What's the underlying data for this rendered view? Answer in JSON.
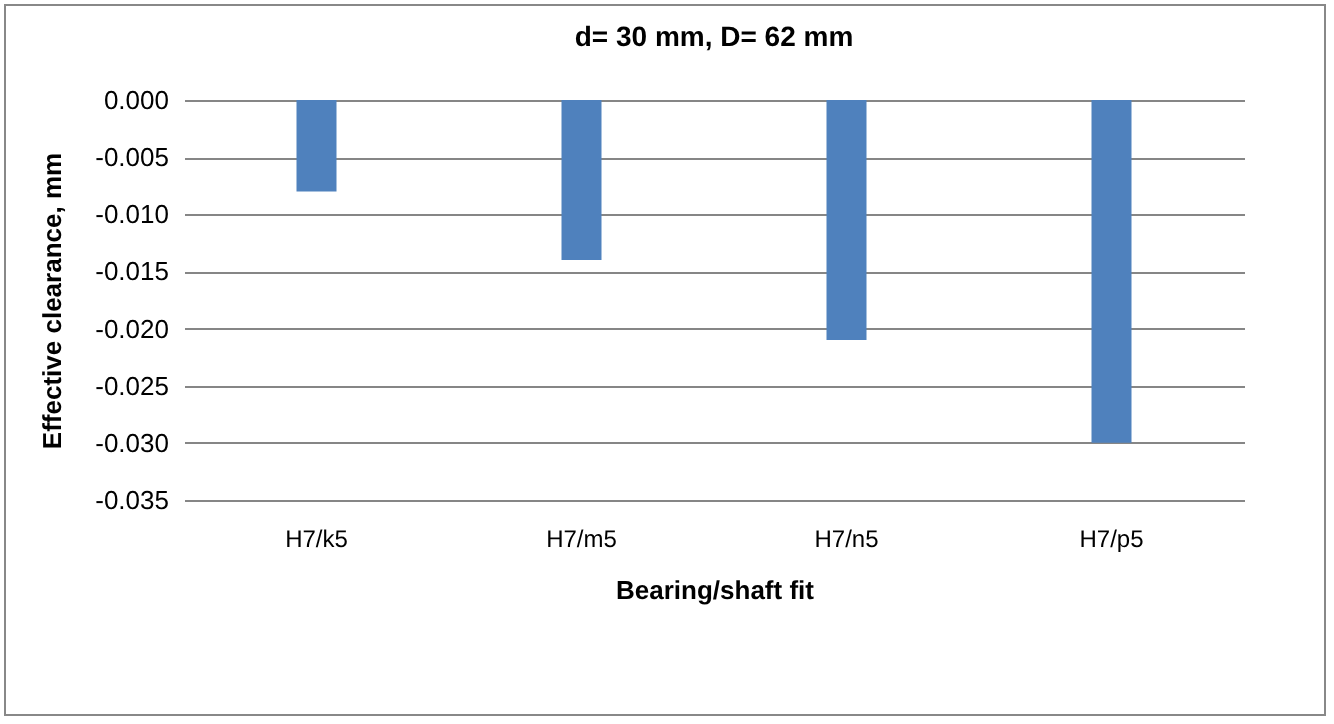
{
  "chart_data": {
    "type": "bar",
    "title": "d= 30 mm, D= 62 mm",
    "xlabel": "Bearing/shaft fit",
    "ylabel": "Effective clearance, mm",
    "categories": [
      "H7/k5",
      "H7/m5",
      "H7/n5",
      "H7/p5"
    ],
    "values": [
      -0.008,
      -0.014,
      -0.021,
      -0.03
    ],
    "color": "#4f81bd",
    "ylim": [
      -0.035,
      0
    ],
    "yticks": [
      {
        "value": 0,
        "label": "0.000"
      },
      {
        "value": -0.005,
        "label": "-0.005"
      },
      {
        "value": -0.01,
        "label": "-0.010"
      },
      {
        "value": -0.015,
        "label": "-0.015"
      },
      {
        "value": -0.02,
        "label": "-0.020"
      },
      {
        "value": -0.025,
        "label": "-0.025"
      },
      {
        "value": -0.03,
        "label": "-0.030"
      },
      {
        "value": -0.035,
        "label": "-0.035"
      }
    ],
    "grid": "y"
  }
}
